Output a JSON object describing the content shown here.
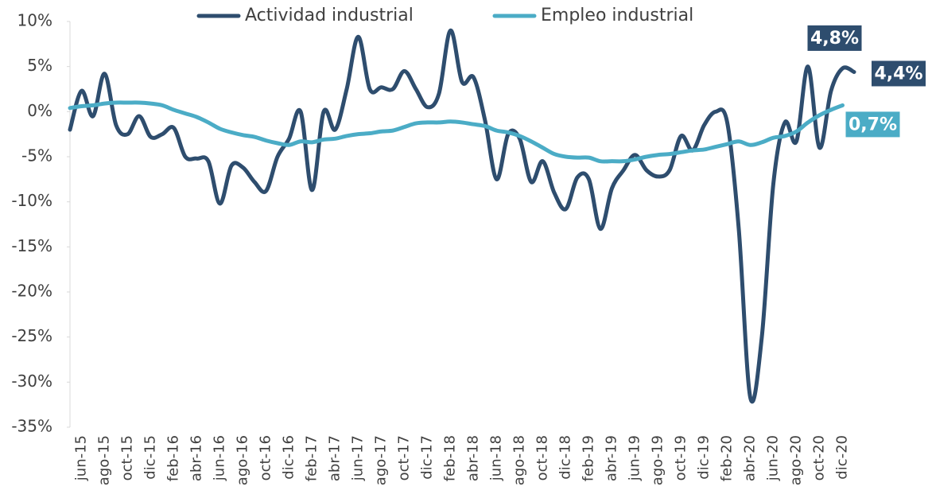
{
  "chart_data": {
    "type": "line",
    "categories": [
      null,
      "jun-15",
      null,
      "ago-15",
      null,
      "oct-15",
      null,
      "dic-15",
      null,
      "feb-16",
      null,
      "abr-16",
      null,
      "jun-16",
      null,
      "ago-16",
      null,
      "oct-16",
      null,
      "dic-16",
      null,
      "feb-17",
      null,
      "abr-17",
      null,
      "jun-17",
      null,
      "ago-17",
      null,
      "oct-17",
      null,
      "dic-17",
      null,
      "feb-18",
      null,
      "abr-18",
      null,
      "jun-18",
      null,
      "ago-18",
      null,
      "oct-18",
      null,
      "dic-18",
      null,
      "feb-19",
      null,
      "abr-19",
      null,
      "jun-19",
      null,
      "ago-19",
      null,
      "oct-19",
      null,
      "dic-19",
      null,
      "feb-20",
      null,
      "abr-20",
      null,
      "jun-20",
      null,
      "ago-20",
      null,
      "oct-20",
      null,
      "dic-20",
      null
    ],
    "series": [
      {
        "name": "Actividad industrial",
        "color": "#2e4d6e",
        "values": [
          -2,
          2.3,
          -0.5,
          4.2,
          -1.5,
          -2.5,
          -0.5,
          -2.8,
          -2.5,
          -1.8,
          -5,
          -5.2,
          -5.5,
          -10.2,
          -6,
          -6.2,
          -7.8,
          -8.8,
          -5,
          -3,
          0,
          -8.7,
          0,
          -2,
          2.5,
          8.3,
          2.5,
          2.7,
          2.5,
          4.5,
          2.5,
          0.5,
          2,
          9,
          3.3,
          3.8,
          -1,
          -7.5,
          -2.5,
          -3,
          -7.8,
          -5.5,
          -9,
          -10.8,
          -7.3,
          -7.5,
          -13,
          -8.5,
          -6.5,
          -4.8,
          -6.5,
          -7.2,
          -6.5,
          -2.7,
          -4.3,
          -1.5,
          0,
          -1.2,
          -13,
          -31.7,
          -25,
          -8,
          -1.2,
          -3.3,
          5,
          -4,
          2.3,
          4.8,
          4.4
        ],
        "value_labels": [
          null,
          null,
          null,
          null,
          null,
          null,
          null,
          null,
          null,
          null,
          null,
          null,
          null,
          null,
          null,
          null,
          null,
          null,
          null,
          null,
          null,
          null,
          null,
          null,
          null,
          null,
          null,
          null,
          null,
          null,
          null,
          null,
          null,
          null,
          null,
          null,
          null,
          null,
          null,
          null,
          null,
          null,
          null,
          null,
          null,
          null,
          null,
          null,
          null,
          null,
          null,
          null,
          null,
          null,
          null,
          null,
          null,
          null,
          null,
          null,
          null,
          null,
          null,
          null,
          null,
          null,
          null,
          "4,8%",
          "4,4%"
        ]
      },
      {
        "name": "Empleo industrial",
        "color": "#4bacc6",
        "values": [
          0.4,
          0.6,
          0.7,
          0.9,
          1.0,
          1.0,
          1.0,
          0.9,
          0.7,
          0.2,
          -0.2,
          -0.6,
          -1.2,
          -1.9,
          -2.3,
          -2.6,
          -2.8,
          -3.2,
          -3.5,
          -3.7,
          -3.3,
          -3.4,
          -3.1,
          -3.0,
          -2.7,
          -2.5,
          -2.4,
          -2.2,
          -2.1,
          -1.7,
          -1.3,
          -1.2,
          -1.2,
          -1.1,
          -1.2,
          -1.4,
          -1.6,
          -2.1,
          -2.3,
          -2.7,
          -3.3,
          -4.0,
          -4.7,
          -5.0,
          -5.1,
          -5.1,
          -5.5,
          -5.5,
          -5.5,
          -5.3,
          -5.0,
          -4.8,
          -4.7,
          -4.5,
          -4.3,
          -4.2,
          -3.9,
          -3.6,
          -3.3,
          -3.7,
          -3.4,
          -2.9,
          -2.7,
          -2.2,
          -1.2,
          -0.4,
          0.2,
          0.7,
          null
        ],
        "value_labels": [
          null,
          null,
          null,
          null,
          null,
          null,
          null,
          null,
          null,
          null,
          null,
          null,
          null,
          null,
          null,
          null,
          null,
          null,
          null,
          null,
          null,
          null,
          null,
          null,
          null,
          null,
          null,
          null,
          null,
          null,
          null,
          null,
          null,
          null,
          null,
          null,
          null,
          null,
          null,
          null,
          null,
          null,
          null,
          null,
          null,
          null,
          null,
          null,
          null,
          null,
          null,
          null,
          null,
          null,
          null,
          null,
          null,
          null,
          null,
          null,
          null,
          null,
          null,
          null,
          null,
          null,
          null,
          "0,7%",
          null
        ]
      }
    ],
    "ylim": [
      -35,
      10
    ],
    "yticks": [
      {
        "value": 10,
        "label": "10%"
      },
      {
        "value": 5,
        "label": "5%"
      },
      {
        "value": 0,
        "label": "0%"
      },
      {
        "value": -5,
        "label": "-5%"
      },
      {
        "value": -10,
        "label": "-10%"
      },
      {
        "value": -15,
        "label": "-15%"
      },
      {
        "value": -20,
        "label": "-20%"
      },
      {
        "value": -25,
        "label": "-25%"
      },
      {
        "value": -30,
        "label": "-30%"
      },
      {
        "value": -35,
        "label": "-35%"
      }
    ],
    "grid": false,
    "legend": "top"
  }
}
